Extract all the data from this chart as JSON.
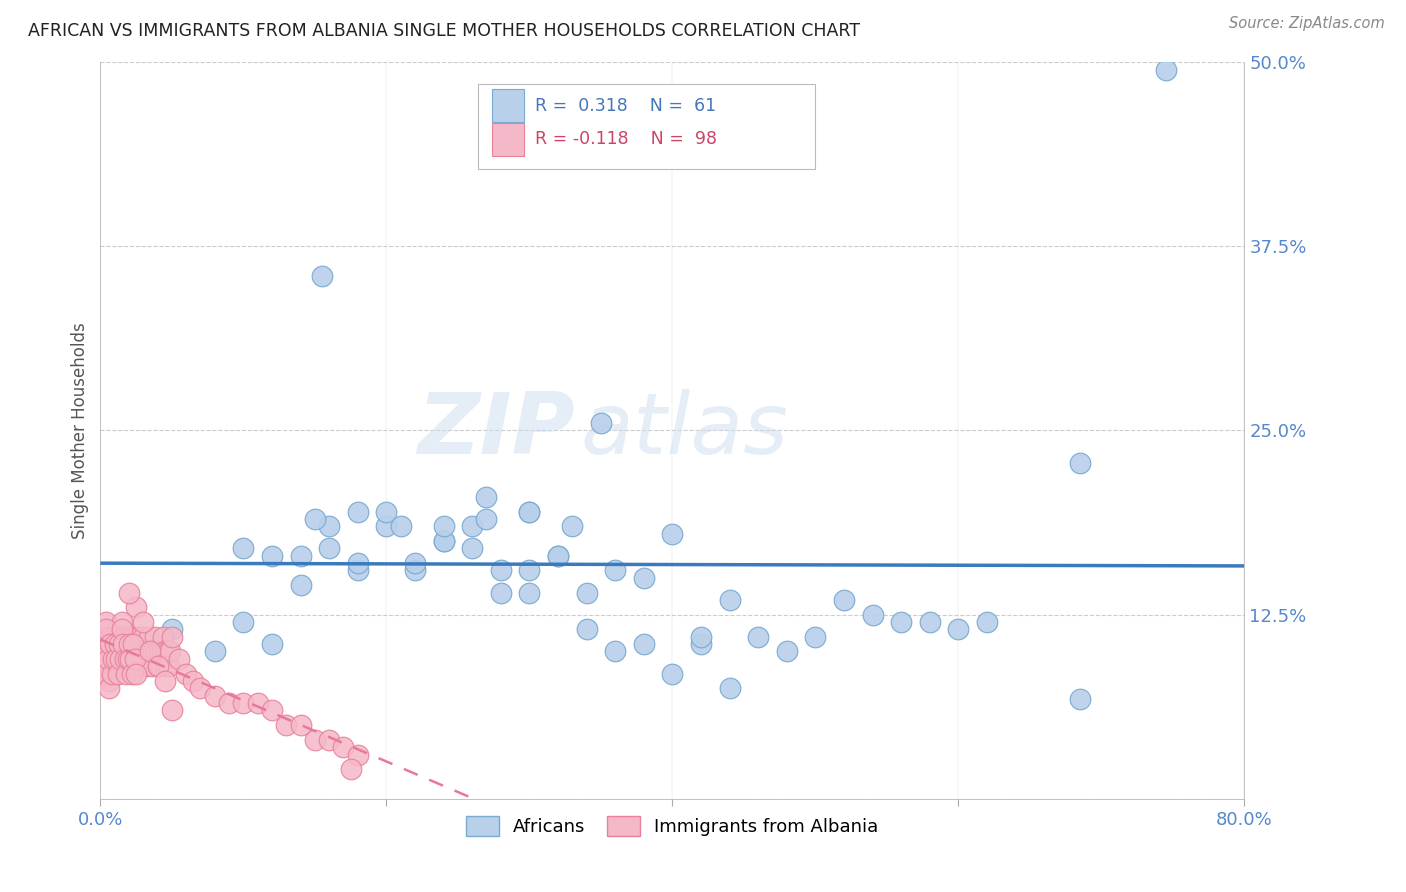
{
  "title": "AFRICAN VS IMMIGRANTS FROM ALBANIA SINGLE MOTHER HOUSEHOLDS CORRELATION CHART",
  "source": "Source: ZipAtlas.com",
  "ylabel": "Single Mother Households",
  "watermark_zip": "ZIP",
  "watermark_atlas": "atlas",
  "xlim": [
    0.0,
    0.8
  ],
  "ylim": [
    0.0,
    0.5
  ],
  "xticks": [
    0.0,
    0.2,
    0.4,
    0.6,
    0.8
  ],
  "xtick_labels": [
    "0.0%",
    "",
    "",
    "",
    "80.0%"
  ],
  "yticks": [
    0.0,
    0.125,
    0.25,
    0.375,
    0.5
  ],
  "ytick_labels_right": [
    "",
    "12.5%",
    "25.0%",
    "37.5%",
    "50.0%"
  ],
  "africans_color": "#b8d0ea",
  "albania_color": "#f5b8c8",
  "africans_edge_color": "#7aaad0",
  "albania_edge_color": "#e8809a",
  "trend_african_color": "#3a7abf",
  "trend_albania_color": "#e87898",
  "background_color": "#ffffff",
  "grid_color": "#cccccc",
  "tick_label_color": "#5588cc",
  "title_color": "#222222",
  "source_color": "#888888",
  "ylabel_color": "#555555",
  "legend_text_blue": "#4477bb",
  "legend_text_red": "#cc4466",
  "africans_x": [
    0.745,
    0.155,
    0.35,
    0.685,
    0.685,
    0.05,
    0.08,
    0.1,
    0.12,
    0.14,
    0.16,
    0.18,
    0.2,
    0.22,
    0.24,
    0.26,
    0.28,
    0.3,
    0.32,
    0.34,
    0.36,
    0.38,
    0.4,
    0.42,
    0.44,
    0.1,
    0.12,
    0.14,
    0.16,
    0.18,
    0.2,
    0.22,
    0.24,
    0.26,
    0.28,
    0.3,
    0.32,
    0.34,
    0.36,
    0.38,
    0.4,
    0.42,
    0.44,
    0.46,
    0.48,
    0.5,
    0.52,
    0.54,
    0.56,
    0.58,
    0.6,
    0.62,
    0.27,
    0.3,
    0.33,
    0.15,
    0.18,
    0.21,
    0.24,
    0.27,
    0.3
  ],
  "africans_y": [
    0.495,
    0.355,
    0.255,
    0.228,
    0.068,
    0.115,
    0.1,
    0.12,
    0.105,
    0.145,
    0.17,
    0.155,
    0.185,
    0.155,
    0.175,
    0.17,
    0.155,
    0.14,
    0.165,
    0.14,
    0.155,
    0.15,
    0.18,
    0.105,
    0.135,
    0.17,
    0.165,
    0.165,
    0.185,
    0.16,
    0.195,
    0.16,
    0.175,
    0.185,
    0.14,
    0.155,
    0.165,
    0.115,
    0.1,
    0.105,
    0.085,
    0.11,
    0.075,
    0.11,
    0.1,
    0.11,
    0.135,
    0.125,
    0.12,
    0.12,
    0.115,
    0.12,
    0.205,
    0.195,
    0.185,
    0.19,
    0.195,
    0.185,
    0.185,
    0.19,
    0.195
  ],
  "albania_x": [
    0.001,
    0.002,
    0.003,
    0.004,
    0.005,
    0.006,
    0.007,
    0.008,
    0.009,
    0.01,
    0.011,
    0.012,
    0.013,
    0.014,
    0.015,
    0.016,
    0.017,
    0.018,
    0.019,
    0.02,
    0.021,
    0.022,
    0.023,
    0.024,
    0.025,
    0.026,
    0.027,
    0.028,
    0.029,
    0.03,
    0.031,
    0.032,
    0.033,
    0.034,
    0.035,
    0.036,
    0.037,
    0.038,
    0.039,
    0.04,
    0.041,
    0.042,
    0.043,
    0.044,
    0.045,
    0.046,
    0.047,
    0.048,
    0.049,
    0.05,
    0.001,
    0.002,
    0.003,
    0.004,
    0.005,
    0.006,
    0.007,
    0.008,
    0.009,
    0.01,
    0.011,
    0.012,
    0.013,
    0.014,
    0.015,
    0.016,
    0.017,
    0.018,
    0.019,
    0.02,
    0.021,
    0.022,
    0.023,
    0.024,
    0.025,
    0.055,
    0.06,
    0.065,
    0.07,
    0.08,
    0.09,
    0.1,
    0.11,
    0.12,
    0.13,
    0.14,
    0.15,
    0.16,
    0.17,
    0.18,
    0.025,
    0.03,
    0.035,
    0.04,
    0.045,
    0.05,
    0.02,
    0.175
  ],
  "albania_y": [
    0.1,
    0.11,
    0.09,
    0.12,
    0.1,
    0.08,
    0.11,
    0.09,
    0.1,
    0.11,
    0.1,
    0.09,
    0.11,
    0.1,
    0.12,
    0.11,
    0.1,
    0.09,
    0.1,
    0.11,
    0.1,
    0.09,
    0.11,
    0.1,
    0.09,
    0.1,
    0.11,
    0.1,
    0.09,
    0.11,
    0.1,
    0.09,
    0.1,
    0.11,
    0.1,
    0.09,
    0.1,
    0.11,
    0.1,
    0.09,
    0.1,
    0.09,
    0.1,
    0.11,
    0.1,
    0.09,
    0.1,
    0.09,
    0.1,
    0.11,
    0.095,
    0.105,
    0.085,
    0.115,
    0.095,
    0.075,
    0.105,
    0.085,
    0.095,
    0.105,
    0.095,
    0.085,
    0.105,
    0.095,
    0.115,
    0.105,
    0.095,
    0.085,
    0.095,
    0.105,
    0.095,
    0.085,
    0.105,
    0.095,
    0.085,
    0.095,
    0.085,
    0.08,
    0.075,
    0.07,
    0.065,
    0.065,
    0.065,
    0.06,
    0.05,
    0.05,
    0.04,
    0.04,
    0.035,
    0.03,
    0.13,
    0.12,
    0.1,
    0.09,
    0.08,
    0.06,
    0.14,
    0.02
  ]
}
